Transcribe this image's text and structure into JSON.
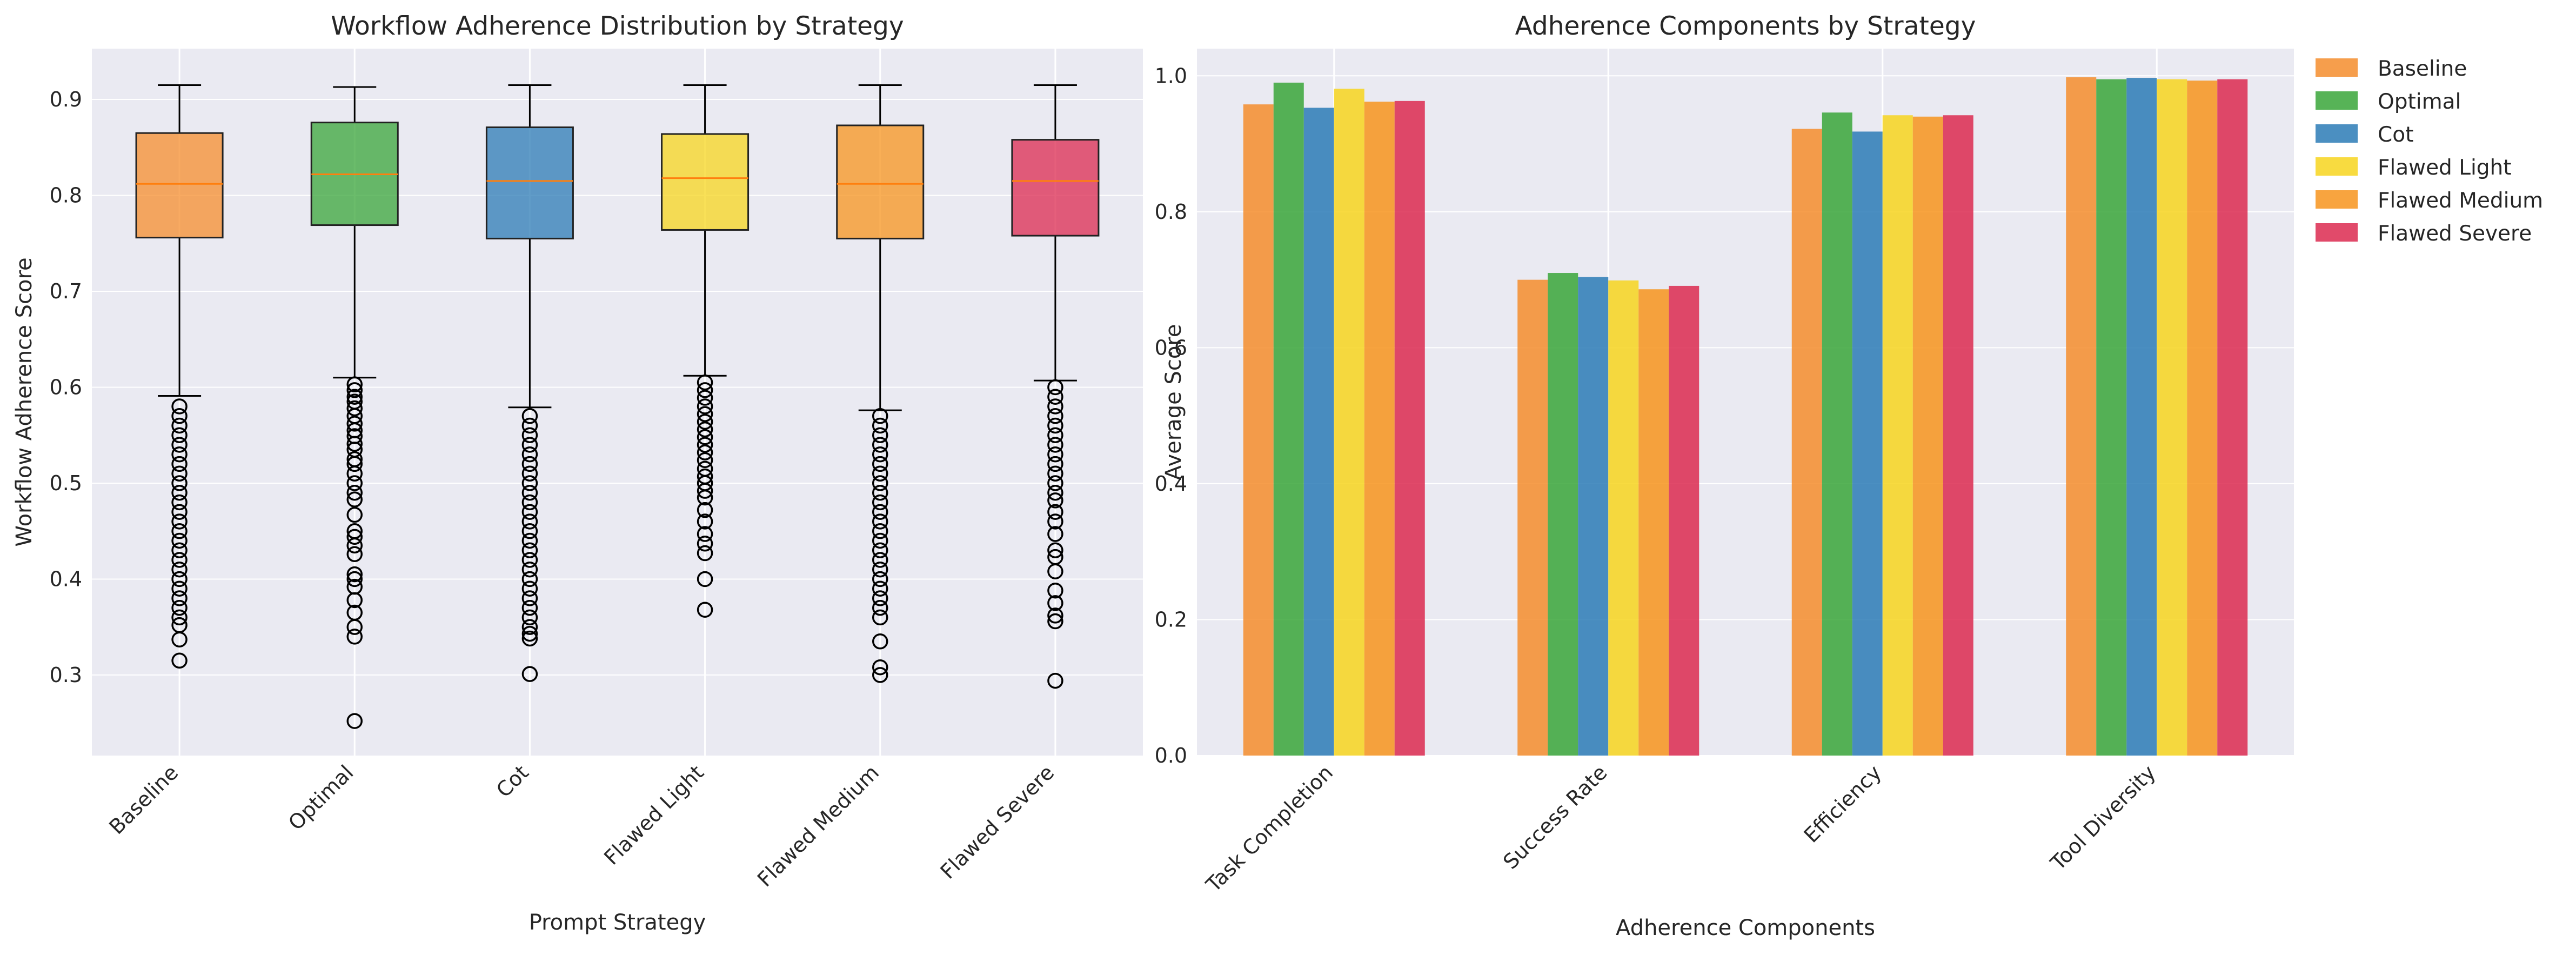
{
  "chart_data": [
    {
      "type": "box",
      "title": "Workflow Adherence Distribution by Strategy",
      "xlabel": "Prompt Strategy",
      "ylabel": "Workflow Adherence Score",
      "ylim": [
        0.216,
        0.953
      ],
      "yticks": [
        0.3,
        0.4,
        0.5,
        0.6,
        0.7,
        0.8,
        0.9
      ],
      "ytick_labels": [
        "0.3",
        "0.4",
        "0.5",
        "0.6",
        "0.7",
        "0.8",
        "0.9"
      ],
      "grid": true,
      "categories": [
        "Baseline",
        "Optimal",
        "Cot",
        "Flawed Light",
        "Flawed Medium",
        "Flawed Severe"
      ],
      "colors": [
        "#f58d2d",
        "#3aa63a",
        "#2c7bb6",
        "#f7d51f",
        "#f7941d",
        "#dc2a50"
      ],
      "median_color": "#ff7f0e",
      "boxes": [
        {
          "name": "Baseline",
          "whisker_low": 0.591,
          "q1": 0.756,
          "median": 0.812,
          "q3": 0.865,
          "whisker_high": 0.915,
          "outliers": [
            0.58,
            0.57,
            0.56,
            0.55,
            0.54,
            0.53,
            0.52,
            0.51,
            0.5,
            0.49,
            0.48,
            0.47,
            0.46,
            0.45,
            0.44,
            0.43,
            0.42,
            0.41,
            0.4,
            0.39,
            0.38,
            0.37,
            0.36,
            0.352,
            0.337,
            0.315
          ]
        },
        {
          "name": "Optimal",
          "whisker_low": 0.61,
          "q1": 0.769,
          "median": 0.822,
          "q3": 0.876,
          "whisker_high": 0.913,
          "outliers": [
            0.603,
            0.597,
            0.59,
            0.585,
            0.578,
            0.57,
            0.562,
            0.555,
            0.549,
            0.541,
            0.535,
            0.525,
            0.52,
            0.51,
            0.5,
            0.49,
            0.483,
            0.467,
            0.45,
            0.444,
            0.435,
            0.426,
            0.405,
            0.4,
            0.392,
            0.378,
            0.365,
            0.35,
            0.34,
            0.252
          ]
        },
        {
          "name": "Cot",
          "whisker_low": 0.579,
          "q1": 0.755,
          "median": 0.815,
          "q3": 0.871,
          "whisker_high": 0.915,
          "outliers": [
            0.57,
            0.56,
            0.55,
            0.54,
            0.53,
            0.52,
            0.51,
            0.5,
            0.49,
            0.48,
            0.47,
            0.46,
            0.45,
            0.44,
            0.43,
            0.42,
            0.41,
            0.4,
            0.39,
            0.38,
            0.37,
            0.36,
            0.35,
            0.343,
            0.338,
            0.301
          ]
        },
        {
          "name": "Flawed Light",
          "whisker_low": 0.612,
          "q1": 0.764,
          "median": 0.818,
          "q3": 0.864,
          "whisker_high": 0.915,
          "outliers": [
            0.605,
            0.597,
            0.589,
            0.58,
            0.572,
            0.564,
            0.556,
            0.548,
            0.54,
            0.532,
            0.524,
            0.515,
            0.507,
            0.5,
            0.492,
            0.485,
            0.472,
            0.46,
            0.447,
            0.437,
            0.427,
            0.4,
            0.368
          ]
        },
        {
          "name": "Flawed Medium",
          "whisker_low": 0.576,
          "q1": 0.755,
          "median": 0.812,
          "q3": 0.873,
          "whisker_high": 0.915,
          "outliers": [
            0.57,
            0.56,
            0.55,
            0.54,
            0.53,
            0.52,
            0.51,
            0.5,
            0.49,
            0.48,
            0.47,
            0.46,
            0.45,
            0.44,
            0.43,
            0.42,
            0.41,
            0.4,
            0.39,
            0.38,
            0.37,
            0.36,
            0.335,
            0.308,
            0.3
          ]
        },
        {
          "name": "Flawed Severe",
          "whisker_low": 0.607,
          "q1": 0.758,
          "median": 0.815,
          "q3": 0.858,
          "whisker_high": 0.915,
          "outliers": [
            0.6,
            0.59,
            0.58,
            0.57,
            0.56,
            0.55,
            0.54,
            0.53,
            0.52,
            0.51,
            0.5,
            0.49,
            0.482,
            0.47,
            0.46,
            0.447,
            0.43,
            0.423,
            0.408,
            0.388,
            0.375,
            0.362,
            0.356,
            0.294
          ]
        }
      ]
    },
    {
      "type": "bar",
      "title": "Adherence Components by Strategy",
      "xlabel": "Adherence Components",
      "ylabel": "Average Score",
      "ylim": [
        0,
        1.04
      ],
      "yticks": [
        0.0,
        0.2,
        0.4,
        0.6,
        0.8,
        1.0
      ],
      "ytick_labels": [
        "0.0",
        "0.2",
        "0.4",
        "0.6",
        "0.8",
        "1.0"
      ],
      "grid": true,
      "legend_position": "outside-right-top",
      "categories": [
        "Task Completion",
        "Success Rate",
        "Efficiency",
        "Tool Diversity"
      ],
      "series": [
        {
          "name": "Baseline",
          "color": "#f58d2d",
          "values": [
            0.958,
            0.7,
            0.922,
            0.998
          ]
        },
        {
          "name": "Optimal",
          "color": "#3aa63a",
          "values": [
            0.99,
            0.71,
            0.946,
            0.995
          ]
        },
        {
          "name": "Cot",
          "color": "#2c7bb6",
          "values": [
            0.953,
            0.704,
            0.918,
            0.997
          ]
        },
        {
          "name": "Flawed Light",
          "color": "#f7d51f",
          "values": [
            0.981,
            0.699,
            0.942,
            0.995
          ]
        },
        {
          "name": "Flawed Medium",
          "color": "#f7941d",
          "values": [
            0.962,
            0.686,
            0.94,
            0.993
          ]
        },
        {
          "name": "Flawed Severe",
          "color": "#dc2a50",
          "values": [
            0.963,
            0.691,
            0.942,
            0.995
          ]
        }
      ]
    }
  ]
}
